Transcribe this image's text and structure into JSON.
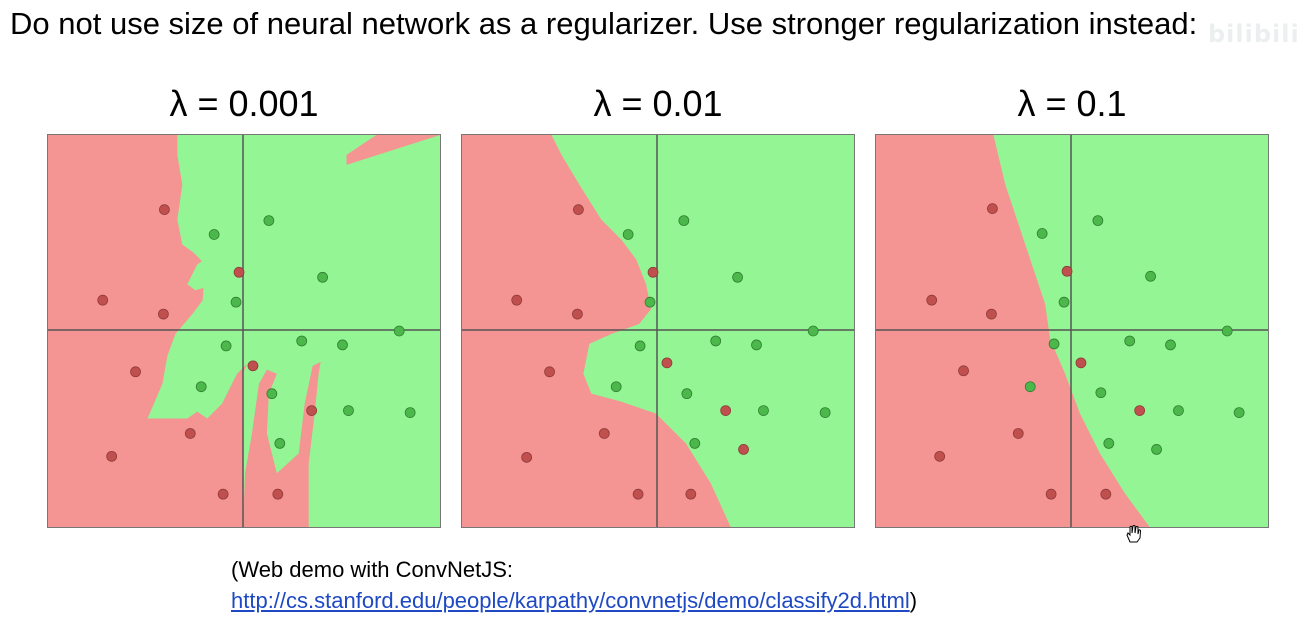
{
  "heading": "Do not use size of neural network as a regularizer. Use stronger regularization instead:",
  "watermark": "bilibili",
  "panels": [
    {
      "label": "λ = 0.001"
    },
    {
      "label": "λ = 0.01"
    },
    {
      "label": "λ = 0.1"
    }
  ],
  "caption": {
    "line1": "(Web demo with ConvNetJS:",
    "link": "http://cs.stanford.edu/people/karpathy/convnetjs/demo/classify2d.html",
    "close": ")"
  },
  "colors": {
    "red_region": "#f49493",
    "green_region": "#94f594",
    "red_point": "#c0504d",
    "green_point": "#4cb84c",
    "axis": "#555555"
  },
  "icons": [
    "hand-cursor-icon"
  ]
}
